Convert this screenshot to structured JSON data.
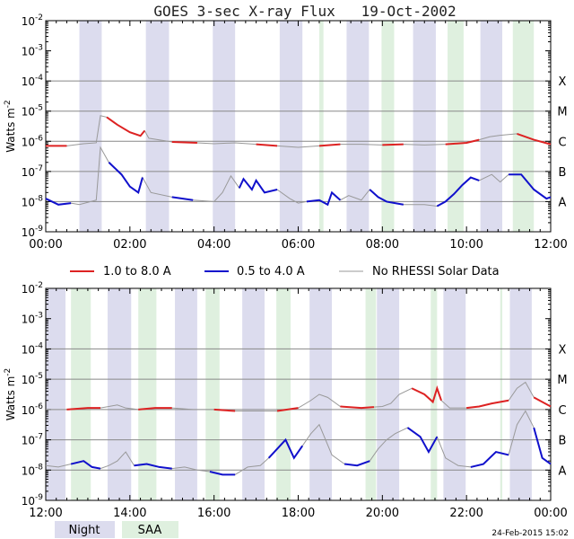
{
  "title": "GOES 3-sec X-ray Flux   19-Oct-2002",
  "timestamp": "24-Feb-2015 15:02",
  "legend": {
    "lines": [
      {
        "label": "1.0 to 8.0 A",
        "color": "#dd2222"
      },
      {
        "label": "0.5 to 4.0 A",
        "color": "#1010cc"
      },
      {
        "label": "No RHESSI Solar Data",
        "color": "#999999"
      }
    ],
    "shading": [
      {
        "label": "Night",
        "color": "#dcdcee"
      },
      {
        "label": "SAA",
        "color": "#dff0df"
      }
    ]
  },
  "chart_data": [
    {
      "type": "line",
      "panel": "top",
      "ylabel": "Watts m^-2",
      "y_scale": "log",
      "ylim_exp": [
        -9,
        -2
      ],
      "y_tick_labels": [
        "10^-9",
        "10^-8",
        "10^-7",
        "10^-6",
        "10^-5",
        "10^-4",
        "10^-3",
        "10^-2"
      ],
      "class_labels": [
        {
          "label": "A",
          "exp": -8
        },
        {
          "label": "B",
          "exp": -7
        },
        {
          "label": "C",
          "exp": -6
        },
        {
          "label": "M",
          "exp": -5
        },
        {
          "label": "X",
          "exp": -4
        }
      ],
      "xlim_hours": [
        0,
        12
      ],
      "x_tick_labels": [
        "00:00",
        "02:00",
        "04:00",
        "06:00",
        "08:00",
        "10:00",
        "12:00"
      ],
      "night_intervals_hours": [
        [
          0.8,
          1.33
        ],
        [
          2.38,
          2.93
        ],
        [
          3.97,
          4.5
        ],
        [
          5.56,
          6.1
        ],
        [
          7.15,
          7.68
        ],
        [
          8.73,
          9.27
        ],
        [
          10.33,
          10.85
        ]
      ],
      "saa_intervals_hours": [
        [
          6.5,
          6.6
        ],
        [
          7.98,
          8.28
        ],
        [
          9.55,
          9.93
        ],
        [
          11.1,
          11.6
        ]
      ],
      "series": [
        {
          "name": "1.0 to 8.0 A",
          "t_hours": [
            0,
            0.5,
            0.9,
            1.2,
            1.3,
            1.45,
            1.7,
            2.0,
            2.25,
            2.35,
            2.45,
            3.0,
            3.6,
            4.0,
            4.5,
            5.0,
            5.5,
            6.0,
            6.5,
            7.0,
            7.5,
            8.0,
            8.5,
            9.0,
            9.5,
            10.0,
            10.3,
            10.55,
            10.8,
            11.2,
            11.6,
            12.0
          ],
          "log10_flux": [
            -6.15,
            -6.15,
            -6.08,
            -6.05,
            -5.15,
            -5.2,
            -5.45,
            -5.7,
            -5.82,
            -5.65,
            -5.9,
            -6.02,
            -6.05,
            -6.08,
            -6.05,
            -6.1,
            -6.15,
            -6.2,
            -6.15,
            -6.1,
            -6.1,
            -6.12,
            -6.1,
            -6.12,
            -6.1,
            -6.05,
            -5.95,
            -5.85,
            -5.8,
            -5.75,
            -5.95,
            -6.1
          ],
          "color": "#dd2222"
        },
        {
          "name": "0.5 to 4.0 A",
          "t_hours": [
            0,
            0.3,
            0.6,
            0.8,
            1.2,
            1.3,
            1.5,
            1.8,
            2.0,
            2.2,
            2.3,
            2.5,
            3.0,
            3.5,
            4.0,
            4.2,
            4.4,
            4.6,
            4.7,
            4.9,
            5.0,
            5.2,
            5.5,
            5.8,
            6.0,
            6.2,
            6.5,
            6.7,
            6.8,
            7.0,
            7.2,
            7.5,
            7.7,
            7.9,
            8.1,
            8.3,
            8.5,
            9.0,
            9.3,
            9.5,
            9.7,
            9.9,
            10.1,
            10.3,
            10.6,
            10.8,
            11.0,
            11.3,
            11.6,
            11.9,
            12.0
          ],
          "log10_flux": [
            -7.9,
            -8.1,
            -8.05,
            -8.1,
            -7.95,
            -6.2,
            -6.7,
            -7.1,
            -7.5,
            -7.7,
            -7.2,
            -7.7,
            -7.85,
            -7.95,
            -8.0,
            -7.7,
            -7.15,
            -7.55,
            -7.25,
            -7.6,
            -7.3,
            -7.7,
            -7.6,
            -7.9,
            -8.05,
            -8.0,
            -7.95,
            -8.1,
            -7.7,
            -7.95,
            -7.8,
            -7.95,
            -7.6,
            -7.85,
            -8.0,
            -8.05,
            -8.1,
            -8.1,
            -8.15,
            -8.0,
            -7.75,
            -7.45,
            -7.2,
            -7.3,
            -7.1,
            -7.35,
            -7.1,
            -7.1,
            -7.6,
            -7.9,
            -7.85
          ],
          "color": "#1010cc"
        }
      ]
    },
    {
      "type": "line",
      "panel": "bottom",
      "ylabel": "Watts m^-2",
      "y_scale": "log",
      "ylim_exp": [
        -9,
        -2
      ],
      "y_tick_labels": [
        "10^-9",
        "10^-8",
        "10^-7",
        "10^-6",
        "10^-5",
        "10^-4",
        "10^-3",
        "10^-2"
      ],
      "class_labels": [
        {
          "label": "A",
          "exp": -8
        },
        {
          "label": "B",
          "exp": -7
        },
        {
          "label": "C",
          "exp": -6
        },
        {
          "label": "M",
          "exp": -5
        },
        {
          "label": "X",
          "exp": -4
        }
      ],
      "xlim_hours": [
        12,
        24
      ],
      "x_tick_labels": [
        "12:00",
        "14:00",
        "16:00",
        "18:00",
        "20:00",
        "22:00",
        "00:00"
      ],
      "night_intervals_hours": [
        [
          12.0,
          12.47
        ],
        [
          13.47,
          14.03
        ],
        [
          15.07,
          15.6
        ],
        [
          16.67,
          17.2
        ],
        [
          18.27,
          18.8
        ],
        [
          19.87,
          20.4
        ],
        [
          21.45,
          21.98
        ],
        [
          23.03,
          23.55
        ]
      ],
      "saa_intervals_hours": [
        [
          12.6,
          13.07
        ],
        [
          14.2,
          14.63
        ],
        [
          15.8,
          16.13
        ],
        [
          17.48,
          17.82
        ],
        [
          19.6,
          19.85
        ],
        [
          21.15,
          21.3
        ],
        [
          22.8,
          22.85
        ]
      ],
      "series": [
        {
          "name": "1.0 to 8.0 A",
          "t_hours": [
            12.0,
            12.5,
            13.0,
            13.3,
            13.5,
            13.7,
            13.9,
            14.2,
            14.6,
            15.0,
            15.5,
            16.0,
            16.5,
            17.0,
            17.5,
            18.0,
            18.3,
            18.5,
            18.7,
            19.0,
            19.5,
            19.8,
            20.0,
            20.2,
            20.4,
            20.7,
            21.0,
            21.2,
            21.3,
            21.4,
            21.6,
            22.0,
            22.3,
            22.6,
            23.0,
            23.2,
            23.4,
            23.6,
            24.0
          ],
          "log10_flux": [
            -6.0,
            -6.0,
            -5.95,
            -5.95,
            -5.9,
            -5.85,
            -5.95,
            -6.0,
            -5.95,
            -5.95,
            -6.0,
            -6.0,
            -6.05,
            -6.05,
            -6.05,
            -5.95,
            -5.7,
            -5.5,
            -5.6,
            -5.9,
            -5.95,
            -5.92,
            -5.9,
            -5.8,
            -5.5,
            -5.3,
            -5.5,
            -5.75,
            -5.3,
            -5.7,
            -5.95,
            -5.95,
            -5.9,
            -5.8,
            -5.7,
            -5.3,
            -5.1,
            -5.6,
            -5.9
          ],
          "color": "#dd2222"
        },
        {
          "name": "0.5 to 4.0 A",
          "t_hours": [
            12.0,
            12.3,
            12.6,
            12.9,
            13.1,
            13.3,
            13.5,
            13.7,
            13.9,
            14.1,
            14.4,
            14.7,
            15.0,
            15.3,
            15.6,
            15.9,
            16.2,
            16.5,
            16.8,
            17.1,
            17.3,
            17.5,
            17.7,
            17.9,
            18.1,
            18.3,
            18.5,
            18.8,
            19.1,
            19.4,
            19.7,
            19.9,
            20.1,
            20.3,
            20.6,
            20.9,
            21.1,
            21.3,
            21.5,
            21.8,
            22.1,
            22.4,
            22.7,
            23.0,
            23.2,
            23.4,
            23.6,
            23.8,
            24.0
          ],
          "log10_flux": [
            -7.85,
            -7.9,
            -7.8,
            -7.7,
            -7.9,
            -7.95,
            -7.85,
            -7.7,
            -7.4,
            -7.85,
            -7.8,
            -7.9,
            -7.95,
            -7.9,
            -8.0,
            -8.05,
            -8.15,
            -8.15,
            -7.9,
            -7.85,
            -7.6,
            -7.3,
            -7.0,
            -7.6,
            -7.2,
            -6.8,
            -6.5,
            -7.5,
            -7.8,
            -7.85,
            -7.7,
            -7.3,
            -7.0,
            -6.8,
            -6.6,
            -6.9,
            -7.4,
            -6.9,
            -7.6,
            -7.85,
            -7.9,
            -7.8,
            -7.4,
            -7.5,
            -6.5,
            -6.05,
            -6.6,
            -7.6,
            -7.8
          ],
          "color": "#1010cc"
        }
      ]
    }
  ]
}
